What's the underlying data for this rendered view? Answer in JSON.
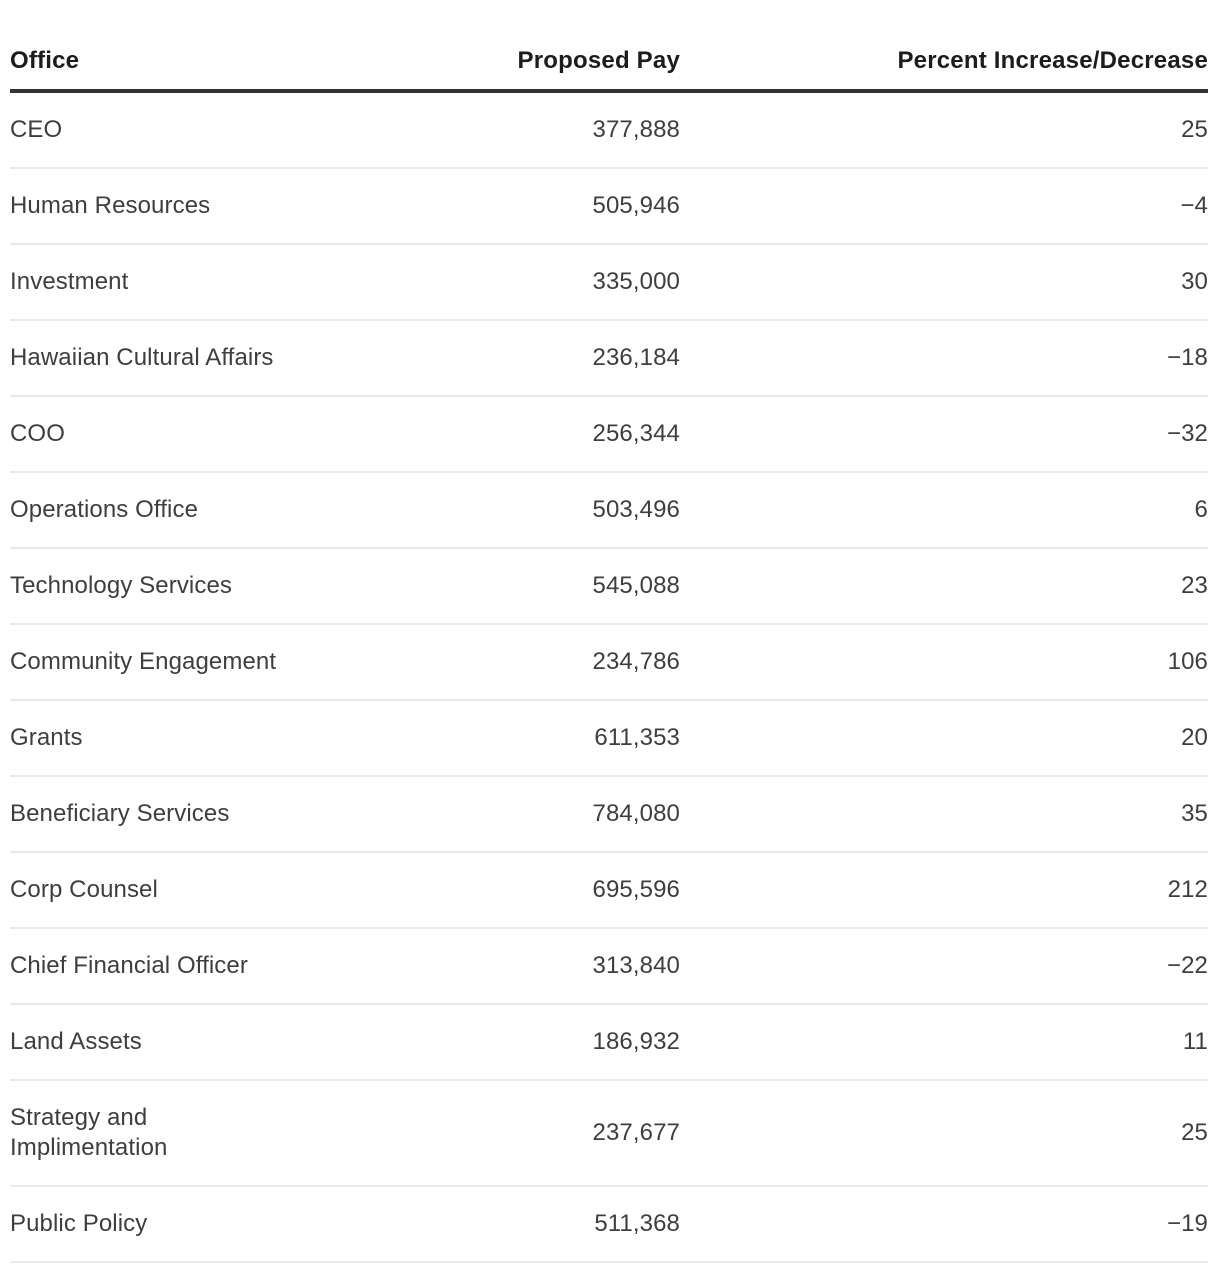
{
  "chart_data": {
    "type": "table",
    "columns": [
      "Office",
      "Proposed Pay",
      "Percent Increase/Decrease"
    ],
    "rows": [
      {
        "office": "CEO",
        "proposed_pay": "377,888",
        "percent_change": "25"
      },
      {
        "office": "Human Resources",
        "proposed_pay": "505,946",
        "percent_change": "−4"
      },
      {
        "office": "Investment",
        "proposed_pay": "335,000",
        "percent_change": "30"
      },
      {
        "office": "Hawaiian Cultural Affairs",
        "proposed_pay": "236,184",
        "percent_change": "−18"
      },
      {
        "office": "COO",
        "proposed_pay": "256,344",
        "percent_change": "−32"
      },
      {
        "office": "Operations Office",
        "proposed_pay": "503,496",
        "percent_change": "6"
      },
      {
        "office": "Technology Services",
        "proposed_pay": "545,088",
        "percent_change": "23"
      },
      {
        "office": "Community Engagement",
        "proposed_pay": "234,786",
        "percent_change": "106"
      },
      {
        "office": "Grants",
        "proposed_pay": "611,353",
        "percent_change": "20"
      },
      {
        "office": "Beneficiary Services",
        "proposed_pay": "784,080",
        "percent_change": "35"
      },
      {
        "office": "Corp Counsel",
        "proposed_pay": "695,596",
        "percent_change": "212"
      },
      {
        "office": "Chief Financial Officer",
        "proposed_pay": "313,840",
        "percent_change": "−22"
      },
      {
        "office": "Land Assets",
        "proposed_pay": "186,932",
        "percent_change": "11"
      },
      {
        "office": "Strategy and Implimentation",
        "proposed_pay": "237,677",
        "percent_change": "25"
      },
      {
        "office": "Public Policy",
        "proposed_pay": "511,368",
        "percent_change": "−19"
      }
    ],
    "colors": {
      "header_text": "#1c1c1c",
      "body_text": "#3e3e3e",
      "header_rule": "#333333",
      "row_separator": "#e9e9e9",
      "background": "#ffffff"
    },
    "layout": {
      "pay_align": "right",
      "percent_align": "right",
      "office_align": "left"
    }
  }
}
